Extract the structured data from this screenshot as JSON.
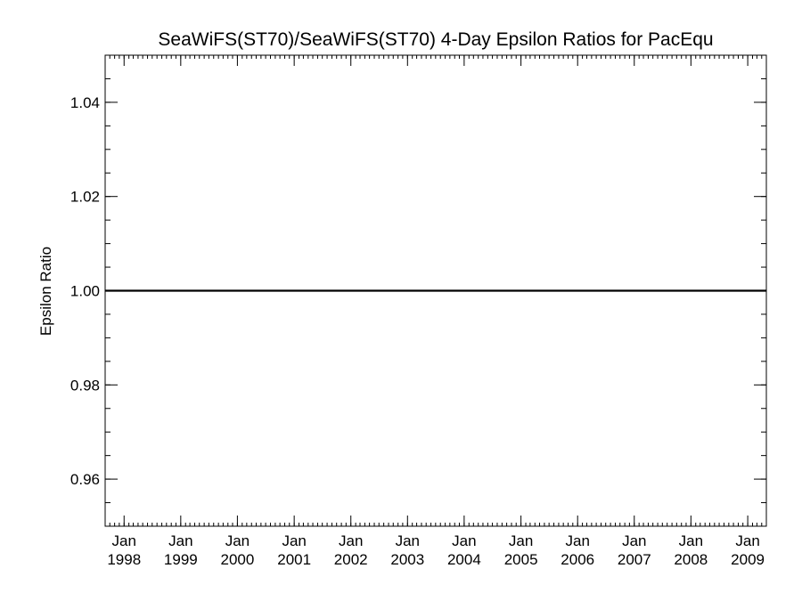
{
  "chart_data": {
    "type": "line",
    "title": "SeaWiFS(ST70)/SeaWiFS(ST70) 4-Day Epsilon Ratios for PacEqu",
    "xlabel": "",
    "ylabel": "Epsilon Ratio",
    "xlim": [
      "1997-09-01",
      "2009-05-01"
    ],
    "ylim": [
      0.95,
      1.05
    ],
    "x_ticks": [
      {
        "date": "1998-01-01",
        "lines": [
          "Jan",
          "1998"
        ]
      },
      {
        "date": "1999-01-01",
        "lines": [
          "Jan",
          "1999"
        ]
      },
      {
        "date": "2000-01-01",
        "lines": [
          "Jan",
          "2000"
        ]
      },
      {
        "date": "2001-01-01",
        "lines": [
          "Jan",
          "2001"
        ]
      },
      {
        "date": "2002-01-01",
        "lines": [
          "Jan",
          "2002"
        ]
      },
      {
        "date": "2003-01-01",
        "lines": [
          "Jan",
          "2003"
        ]
      },
      {
        "date": "2004-01-01",
        "lines": [
          "Jan",
          "2004"
        ]
      },
      {
        "date": "2005-01-01",
        "lines": [
          "Jan",
          "2005"
        ]
      },
      {
        "date": "2006-01-01",
        "lines": [
          "Jan",
          "2006"
        ]
      },
      {
        "date": "2007-01-01",
        "lines": [
          "Jan",
          "2007"
        ]
      },
      {
        "date": "2008-01-01",
        "lines": [
          "Jan",
          "2008"
        ]
      },
      {
        "date": "2009-01-01",
        "lines": [
          "Jan",
          "2009"
        ]
      }
    ],
    "y_ticks": [
      {
        "value": 0.96,
        "label": "0.96"
      },
      {
        "value": 0.98,
        "label": "0.98"
      },
      {
        "value": 1.0,
        "label": "1.00"
      },
      {
        "value": 1.02,
        "label": "1.02"
      },
      {
        "value": 1.04,
        "label": "1.04"
      }
    ],
    "y_minor_step": 0.005,
    "series": [
      {
        "x": [
          "1997-09-01",
          "2009-05-01"
        ],
        "y": [
          1.0,
          1.0
        ],
        "color": "#000000"
      }
    ],
    "grid": false,
    "legend": "none"
  }
}
